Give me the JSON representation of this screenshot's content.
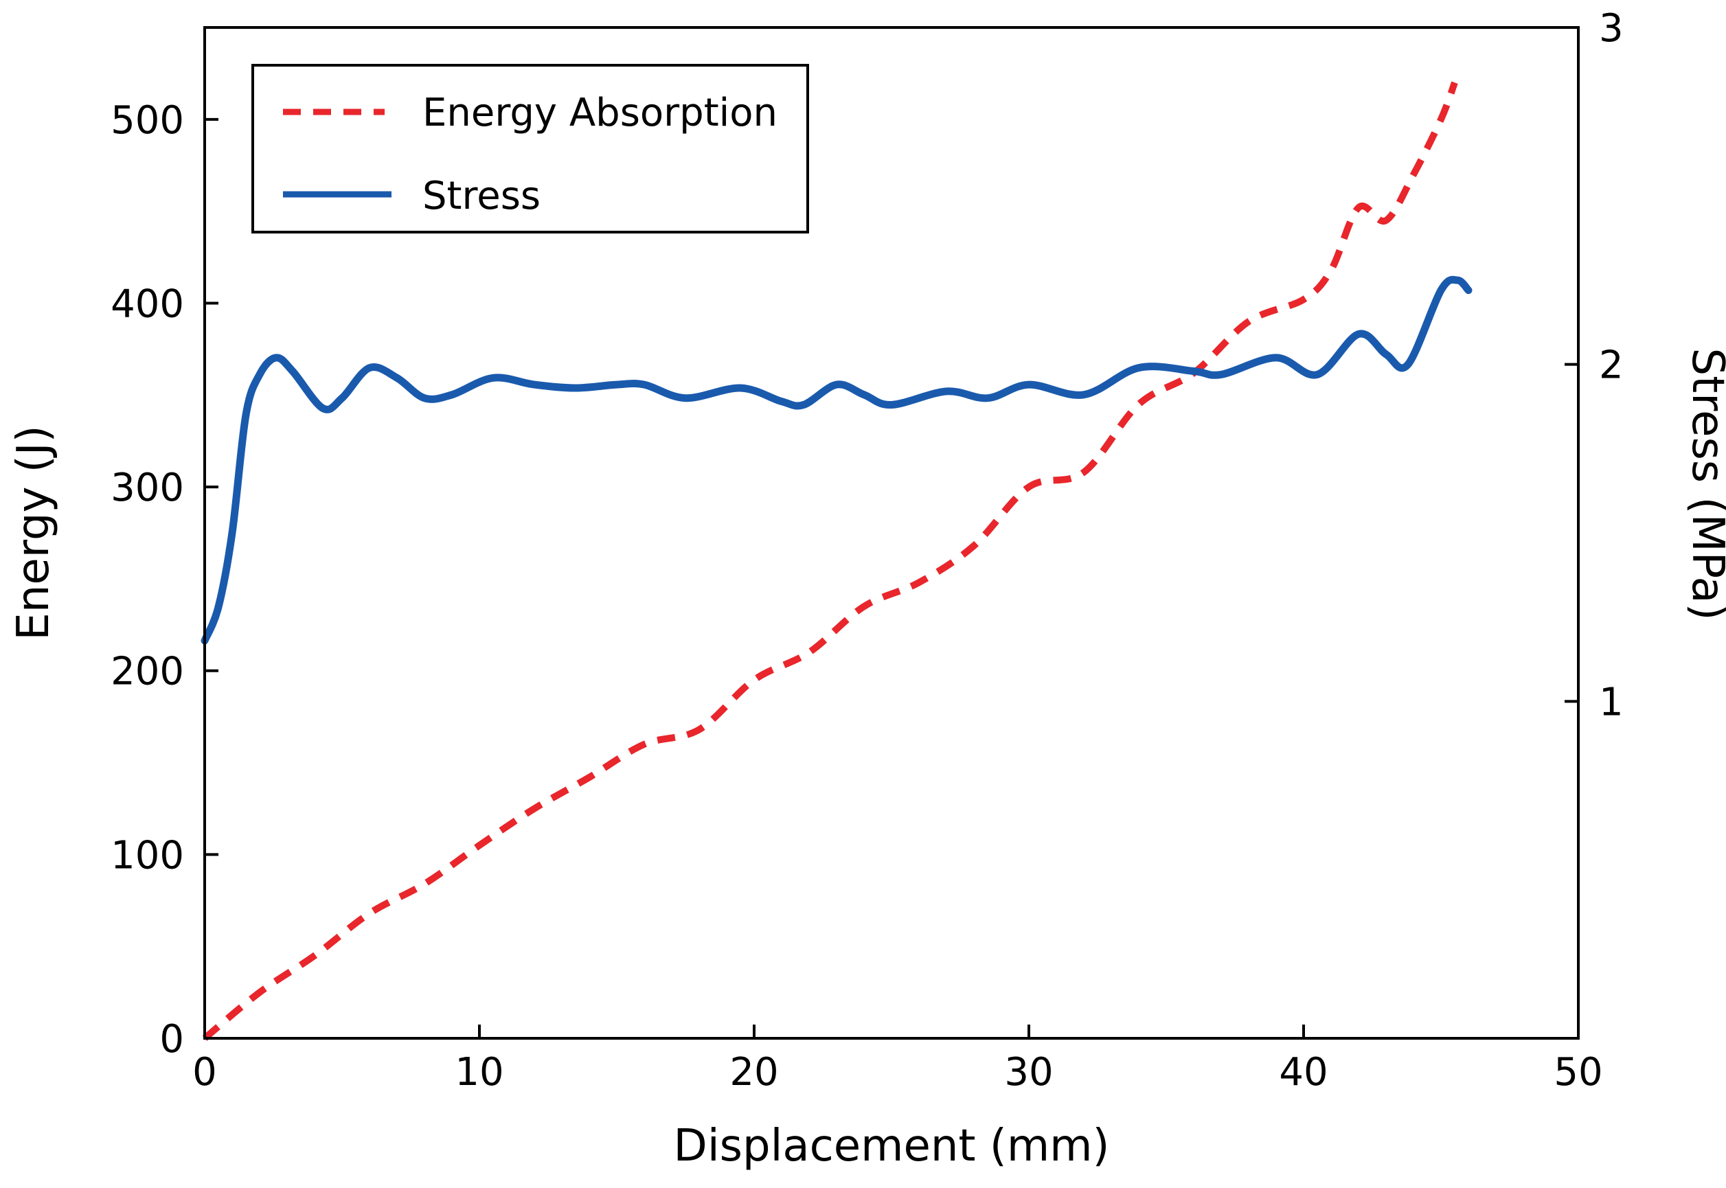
{
  "chart_data": {
    "type": "line",
    "title": "",
    "xlabel": "Displacement (mm)",
    "ylabel": "Energy (J)",
    "y2label": "Stress (MPa)",
    "xlim": [
      0,
      50
    ],
    "ylim": [
      0,
      550
    ],
    "y2lim": [
      0,
      3
    ],
    "xticks": [
      "0",
      "10",
      "20",
      "30",
      "40",
      "50"
    ],
    "xtick_values": [
      0,
      10,
      20,
      30,
      40,
      50
    ],
    "yticks": [
      "0",
      "100",
      "200",
      "300",
      "400",
      "500"
    ],
    "ytick_values": [
      0,
      100,
      200,
      300,
      400,
      500
    ],
    "y2ticks": [
      "1",
      "2",
      "3"
    ],
    "y2tick_values": [
      1,
      2,
      3
    ],
    "grid": false,
    "legend_position": "top-left",
    "series": [
      {
        "name": "Energy Absorption",
        "axis": "left",
        "color": "#e8262b",
        "style": "dashed",
        "x": [
          0,
          2,
          4,
          6,
          8,
          10,
          12,
          14,
          16,
          18,
          20,
          22,
          24,
          26,
          28,
          30,
          32,
          34,
          36,
          38,
          40,
          41,
          42,
          43,
          44,
          45,
          45.5
        ],
        "y": [
          0,
          25,
          45,
          68,
          84,
          105,
          125,
          142,
          160,
          168,
          195,
          210,
          235,
          248,
          268,
          300,
          308,
          345,
          362,
          390,
          402,
          418,
          452,
          445,
          470,
          500,
          520
        ]
      },
      {
        "name": "Stress",
        "axis": "right",
        "color": "#1a5aad",
        "style": "solid",
        "x": [
          0,
          0.5,
          1,
          1.5,
          2,
          2.6,
          3.2,
          4.3,
          5,
          6,
          7,
          8,
          9,
          10.5,
          12,
          13.5,
          15,
          16,
          17.5,
          19.5,
          21,
          21.8,
          23,
          24,
          25,
          27,
          28.5,
          30,
          32,
          34,
          36,
          37,
          39,
          40.5,
          42,
          43,
          43.8,
          45,
          45.6,
          46
        ],
        "y": [
          1.18,
          1.28,
          1.5,
          1.85,
          1.97,
          2.02,
          1.98,
          1.87,
          1.9,
          1.99,
          1.96,
          1.9,
          1.91,
          1.96,
          1.94,
          1.93,
          1.94,
          1.94,
          1.9,
          1.93,
          1.89,
          1.88,
          1.94,
          1.91,
          1.88,
          1.92,
          1.9,
          1.94,
          1.91,
          1.99,
          1.98,
          1.97,
          2.02,
          1.97,
          2.09,
          2.03,
          2.0,
          2.22,
          2.25,
          2.22
        ]
      }
    ]
  }
}
